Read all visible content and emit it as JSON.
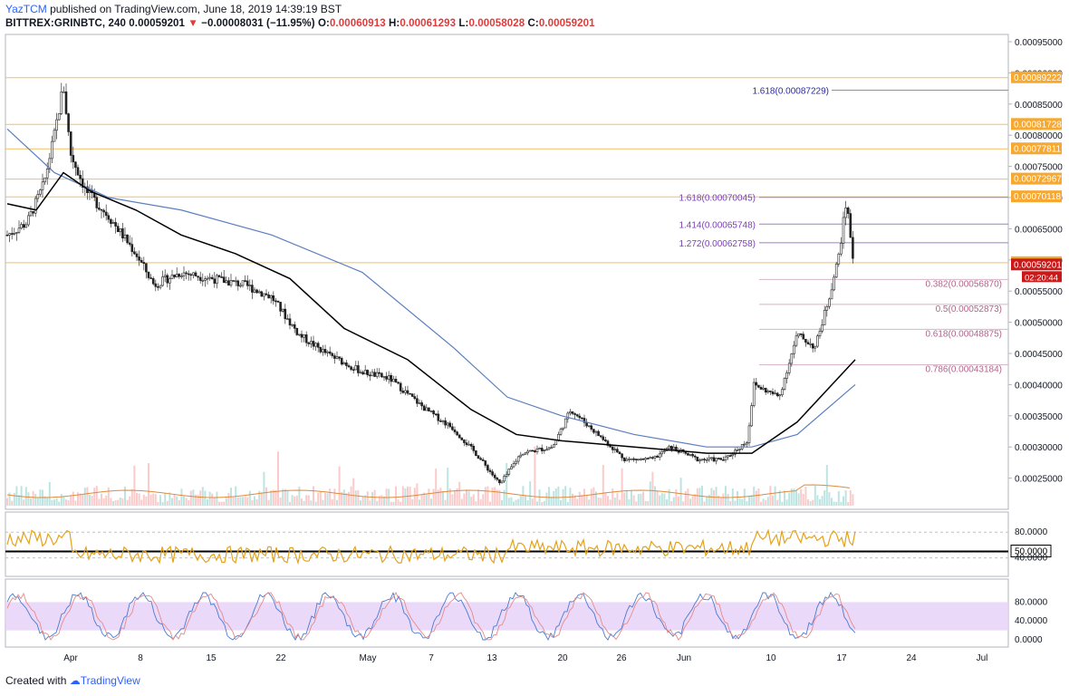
{
  "header": {
    "author": "YazTCM",
    "published_text": "published on TradingView.com, June 18, 2019 14:39:19 BST"
  },
  "symbol_bar": {
    "symbol": "BITTREX:GRINBTC, 240",
    "last": "0.00059201",
    "change": "−0.00008031 (−11.95%)",
    "open_label": "O:",
    "open": "0.00060913",
    "high_label": "H:",
    "high": "0.00061293",
    "low_label": "L:",
    "low": "0.00058028",
    "close_label": "C:",
    "close": "0.00059201"
  },
  "price_axis": {
    "ticks": [
      "0.00095000",
      "0.00090000",
      "0.00085000",
      "0.00080000",
      "0.00075000",
      "0.00070000",
      "0.00065000",
      "0.00060000",
      "0.00055000",
      "0.00050000",
      "0.00045000",
      "0.00040000",
      "0.00035000",
      "0.00030000",
      "0.00025000"
    ]
  },
  "price_tags": [
    {
      "text": "0.00089222",
      "value": 0.00089222,
      "color": "#f7a830"
    },
    {
      "text": "0.00081728",
      "value": 0.00081728,
      "color": "#f7a830"
    },
    {
      "text": "0.00077811",
      "value": 0.00077811,
      "color": "#f7a830"
    },
    {
      "text": "0.00072967",
      "value": 0.00072967,
      "color": "#f7a830"
    },
    {
      "text": "0.00070118",
      "value": 0.00070118,
      "color": "#f7a830"
    },
    {
      "text": "0.00059559",
      "value": 0.00059559,
      "color": "#f7a830"
    },
    {
      "text": "0.00059201",
      "value": 0.00059201,
      "color": "#c91919"
    }
  ],
  "countdown": "02:20:44",
  "fib_extension": [
    {
      "text": "1.618(0.00087229)",
      "value": 0.00087229
    },
    {
      "text": "1.618(0.00070045)",
      "value": 0.00070045
    },
    {
      "text": "1.414(0.00065748)",
      "value": 0.00065748
    },
    {
      "text": "1.272(0.00062758)",
      "value": 0.00062758
    }
  ],
  "fib_retracement": [
    {
      "text": "0.382(0.00056870)",
      "value": 0.0005687
    },
    {
      "text": "0.5(0.00052873)",
      "value": 0.00052873
    },
    {
      "text": "0.618(0.00048875)",
      "value": 0.00048875
    },
    {
      "text": "0.786(0.00043184)",
      "value": 0.00043184
    }
  ],
  "horizontal_levels": [
    0.00089222,
    0.00081728,
    0.00077811,
    0.00072967,
    0.00070118,
    0.00059559
  ],
  "rsi": {
    "ticks": [
      "80.0000",
      "50.0000",
      "40.0000"
    ],
    "badge": "50.0000"
  },
  "stoch": {
    "ticks": [
      "80.0000",
      "40.0000",
      "0.0000"
    ]
  },
  "time_axis": [
    "Apr",
    "8",
    "15",
    "22",
    "May",
    "7",
    "13",
    "20",
    "26",
    "Jun",
    "10",
    "17",
    "24",
    "Jul"
  ],
  "footer": {
    "created_with": "Created with",
    "brand": "TradingView"
  },
  "colors": {
    "up": "#26a69a",
    "down": "#ef5350",
    "sma_blue": "#5b7fbf",
    "sma_black": "#000000",
    "level": "#f0c060",
    "fib_ext": "#7b3fb5",
    "fib_ret": "#b0638a",
    "rsi": "#e3a21a",
    "stoch_band": "#e6d0f7"
  },
  "chart_data": {
    "type": "line",
    "title": "BITTREX:GRINBTC, 240",
    "x": [
      "Apr",
      "8",
      "15",
      "22",
      "May",
      "7",
      "13",
      "20",
      "26",
      "Jun",
      "10",
      "17"
    ],
    "series": [
      {
        "values": [
          0.00078,
          0.00058,
          0.00056,
          0.00054,
          0.00044,
          0.00037,
          0.00024,
          0.00031,
          0.00028,
          0.00029,
          0.0004,
          0.00059201
        ]
      }
    ],
    "ylim": [
      0.00022,
      0.00097
    ]
  }
}
